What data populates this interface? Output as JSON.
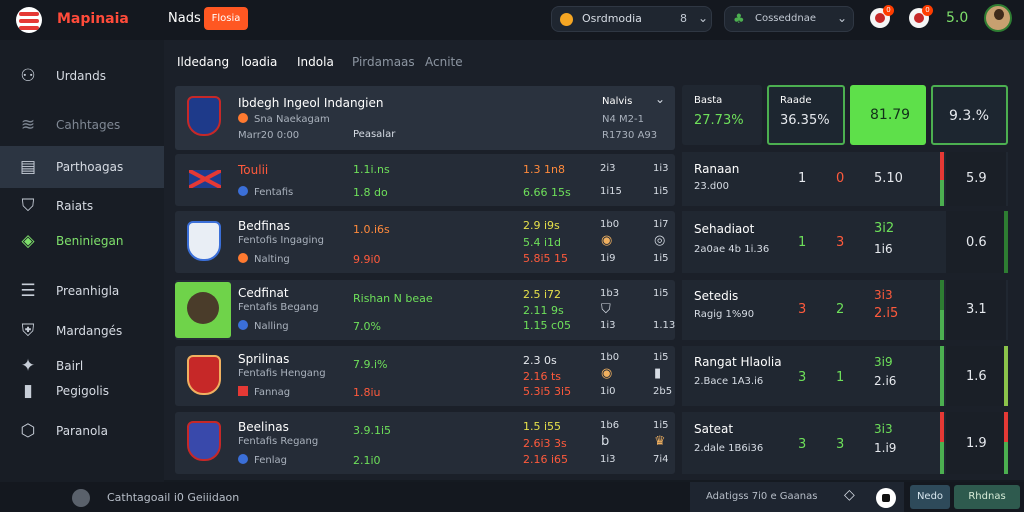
{
  "topbar": {
    "brand": "Mapinaia",
    "nav": "Nads",
    "action_button": "Flosia",
    "search": {
      "label": "Osrdmodia",
      "count": "8"
    },
    "odds": {
      "label": "Cosseddnae"
    },
    "notif1_badge": "0",
    "notif2_badge": "0",
    "balance": "5.0"
  },
  "sidebar": {
    "items": [
      {
        "label": "Urdands",
        "icon": "user-icon"
      },
      {
        "label": "Cahhtages",
        "icon": "wifi-icon"
      },
      {
        "label": "Parthoagas",
        "icon": "news-icon"
      },
      {
        "label": "Raiats",
        "icon": "shield-icon"
      },
      {
        "label": "Beniniegan",
        "icon": "leaf-icon"
      },
      {
        "label": "Preanhigla",
        "icon": "stack-icon"
      },
      {
        "label": "Mardangés",
        "icon": "badge-icon"
      },
      {
        "label": "Bairl",
        "icon": "star-icon"
      },
      {
        "label": "Pegigolis",
        "icon": "flag-icon"
      },
      {
        "label": "Paranola",
        "icon": "location-icon"
      }
    ]
  },
  "tabs": [
    "Ildedang",
    "loadia",
    "Indola",
    "Pirdamaas",
    "Acnite"
  ],
  "header_row": {
    "title": "Ibdegh Ingeol Indangien",
    "subtitle": "Sna Naekagam",
    "time": "Marr20 0:00",
    "meta": "Peasalar",
    "dropdown": "Nalvis",
    "col1": "N4 M2-1",
    "col2": "R1730 A93"
  },
  "rows": [
    {
      "name": "Toulii",
      "sub": "Fentafis",
      "odd1": "1.1i.ns",
      "odd1b": "1.8 do",
      "odd2": "1.3 1n8",
      "odd2b": "6.66 15s",
      "c1a": "2i3",
      "c1b": "1i15",
      "c2a": "1i3",
      "c2b": "1i5"
    },
    {
      "name": "Bedfinas",
      "sub": "Fentofis Ingaging",
      "sub2": "Nalting",
      "odd1": "1.0.i6s",
      "odd1b": "9.9i0",
      "odd2": "2.9 i9s",
      "odd2b": "5.4 i1d",
      "odd2c": "5.8i5 15",
      "c1a": "1b0",
      "c1b": "1i9",
      "c2a": "1i7",
      "c2b": "1i5"
    },
    {
      "name": "Cedfinat",
      "sub": "Fentafis Begang",
      "sub2": "Nalling",
      "odd1": "Rishan N beae",
      "odd1b": "7.0%",
      "odd2": "2.5 i72",
      "odd2b": "2.11 9s",
      "odd2c": "1.15 c05",
      "c1a": "1b3",
      "c1b": "1i3",
      "c2a": "1i5",
      "c2b": "1.13"
    },
    {
      "name": "Sprilinas",
      "sub": "Fentafis Hengang",
      "sub2": "Fannag",
      "odd1": "7.9.i%",
      "odd1b": "1.8iu",
      "odd2": "2.3 0s",
      "odd2b": "2.16 ts",
      "odd2c": "5.3i5 3i5",
      "c1a": "1b0",
      "c1b": "1i0",
      "c2a": "1i5",
      "c2b": "2b5"
    },
    {
      "name": "Beelinas",
      "sub": "Fentafis Regang",
      "sub2": "Fenlag",
      "odd1": "3.9.1i5",
      "odd1b": "2.1i0",
      "odd2": "1.5 i55",
      "odd2b": "2.6i3 3s",
      "odd2c": "2.16 i65",
      "c1a": "1b6",
      "c1b": "1i3",
      "c2a": "1i5",
      "c2b": "7i4"
    }
  ],
  "right_panel": {
    "top": [
      {
        "label": "Basta",
        "value": "27.73%"
      },
      {
        "label": "Raade",
        "value": "36.35%"
      },
      {
        "label": "",
        "value": "81.79"
      },
      {
        "label": "",
        "value": "9.3.%"
      }
    ],
    "rows": [
      {
        "title": "Ranaan",
        "sub": "23.d00",
        "v1": "1",
        "v2": "0",
        "v3": "5.10",
        "v4": "",
        "dark": "5.9"
      },
      {
        "title": "Sehadiaot",
        "sub": "2a0ae 4b 1i.36",
        "v1": "1",
        "v2": "3",
        "v3": "3i2",
        "v4": "1i6",
        "dark": "0.6"
      },
      {
        "title": "Setedis",
        "sub": "Ragig 1%90",
        "v1": "3",
        "v2": "2",
        "v3": "3i3",
        "v4": "2.i5",
        "dark": "3.1"
      },
      {
        "title": "Rangat Hlaolia",
        "sub": "2.Bace 1A3.i6",
        "v1": "3",
        "v2": "1",
        "v3": "3i9",
        "v4": "2.i6",
        "dark": "1.6"
      },
      {
        "title": "Sateat",
        "sub": "2.dale 1B6i36",
        "v1": "3",
        "v2": "3",
        "v3": "3i3",
        "v4": "1.i9",
        "dark": "1.9"
      }
    ]
  },
  "bottombar": {
    "status": "Cathtagoail i0 Geiiidaon",
    "right_text": "Adatigss 7i0 e Gaanas",
    "btn1": "Nedo",
    "btn2": "Rhdnas"
  },
  "colors": {
    "accent_green": "#6ee05a",
    "accent_red": "#ff5a3c",
    "brand": "#ff4b3a"
  }
}
